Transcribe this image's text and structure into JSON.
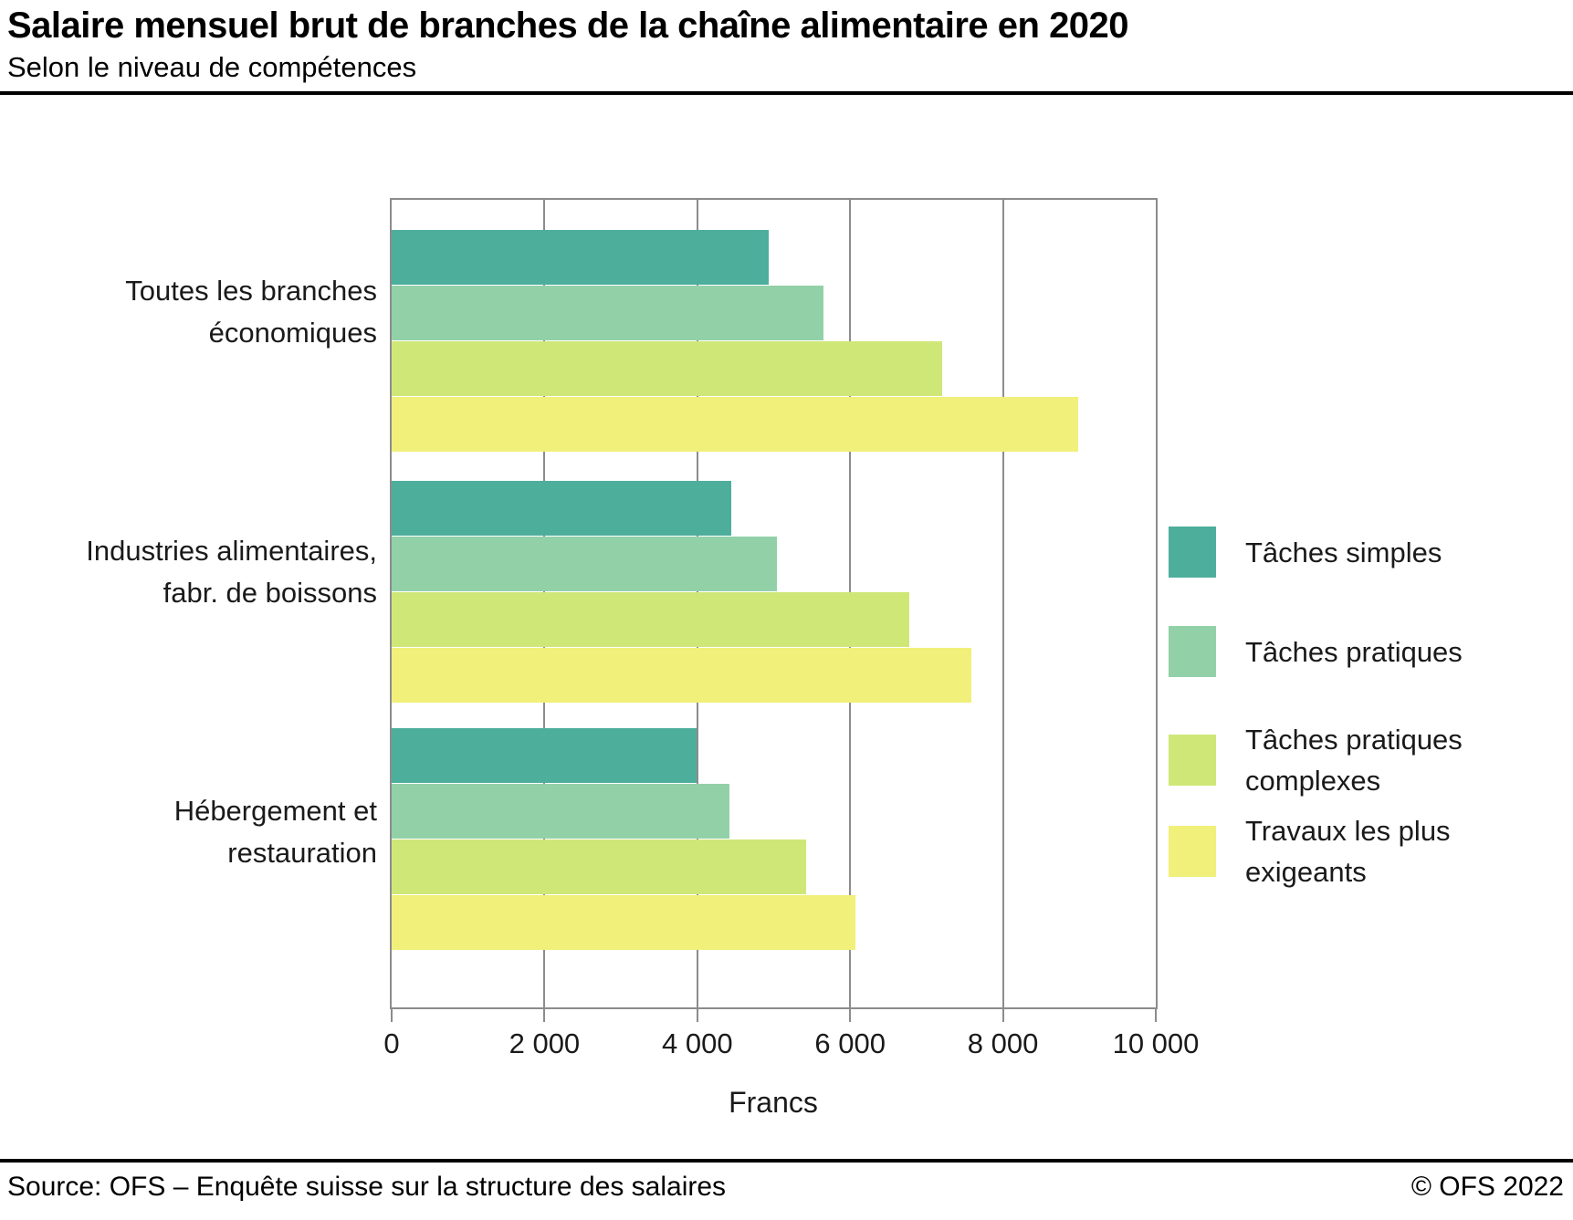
{
  "header": {
    "title": "Salaire mensuel brut de branches de la chaîne alimentaire en 2020",
    "subtitle": "Selon le niveau de compétences"
  },
  "chart_data": {
    "type": "bar",
    "orientation": "horizontal",
    "title": "Salaire mensuel brut de branches de la chaîne alimentaire en 2020",
    "subtitle": "Selon le niveau de compétences",
    "categories": [
      "Toutes les branches économiques",
      "Industries alimentaires, fabr. de boissons",
      "Hébergement et restauration"
    ],
    "category_lines": [
      [
        "Toutes les branches",
        "économiques"
      ],
      [
        "Industries alimentaires,",
        "fabr. de boissons"
      ],
      [
        "Hébergement et",
        "restauration"
      ]
    ],
    "series": [
      {
        "name": "Tâches simples",
        "color": "#4DAE9C",
        "values": [
          4930,
          4440,
          3990
        ]
      },
      {
        "name": "Tâches pratiques",
        "color": "#92D1A8",
        "values": [
          5650,
          5040,
          4420
        ]
      },
      {
        "name": "Tâches pratiques complexes",
        "color": "#CFE777",
        "values": [
          7210,
          6780,
          5430
        ]
      },
      {
        "name": "Travaux les plus exigeants",
        "color": "#F0F07A",
        "values": [
          8980,
          7590,
          6070
        ]
      }
    ],
    "xlabel": "Francs",
    "ylabel": "",
    "xlim": [
      0,
      10000
    ],
    "xticks": [
      0,
      2000,
      4000,
      6000,
      8000,
      10000
    ],
    "xtick_labels": [
      "0",
      "2 000",
      "4 000",
      "6 000",
      "8 000",
      "10 000"
    ],
    "grid": "vertical",
    "legend_position": "right",
    "grid_color": "#8c8c8c"
  },
  "legend": {
    "items": [
      {
        "lines": [
          "Tâches simples"
        ]
      },
      {
        "lines": [
          "Tâches pratiques"
        ]
      },
      {
        "lines": [
          "Tâches pratiques",
          "complexes"
        ]
      },
      {
        "lines": [
          "Travaux les plus",
          "exigeants"
        ]
      }
    ]
  },
  "footer": {
    "source": "Source: OFS – Enquête suisse sur la structure des salaires",
    "copyright": "© OFS 2022"
  }
}
